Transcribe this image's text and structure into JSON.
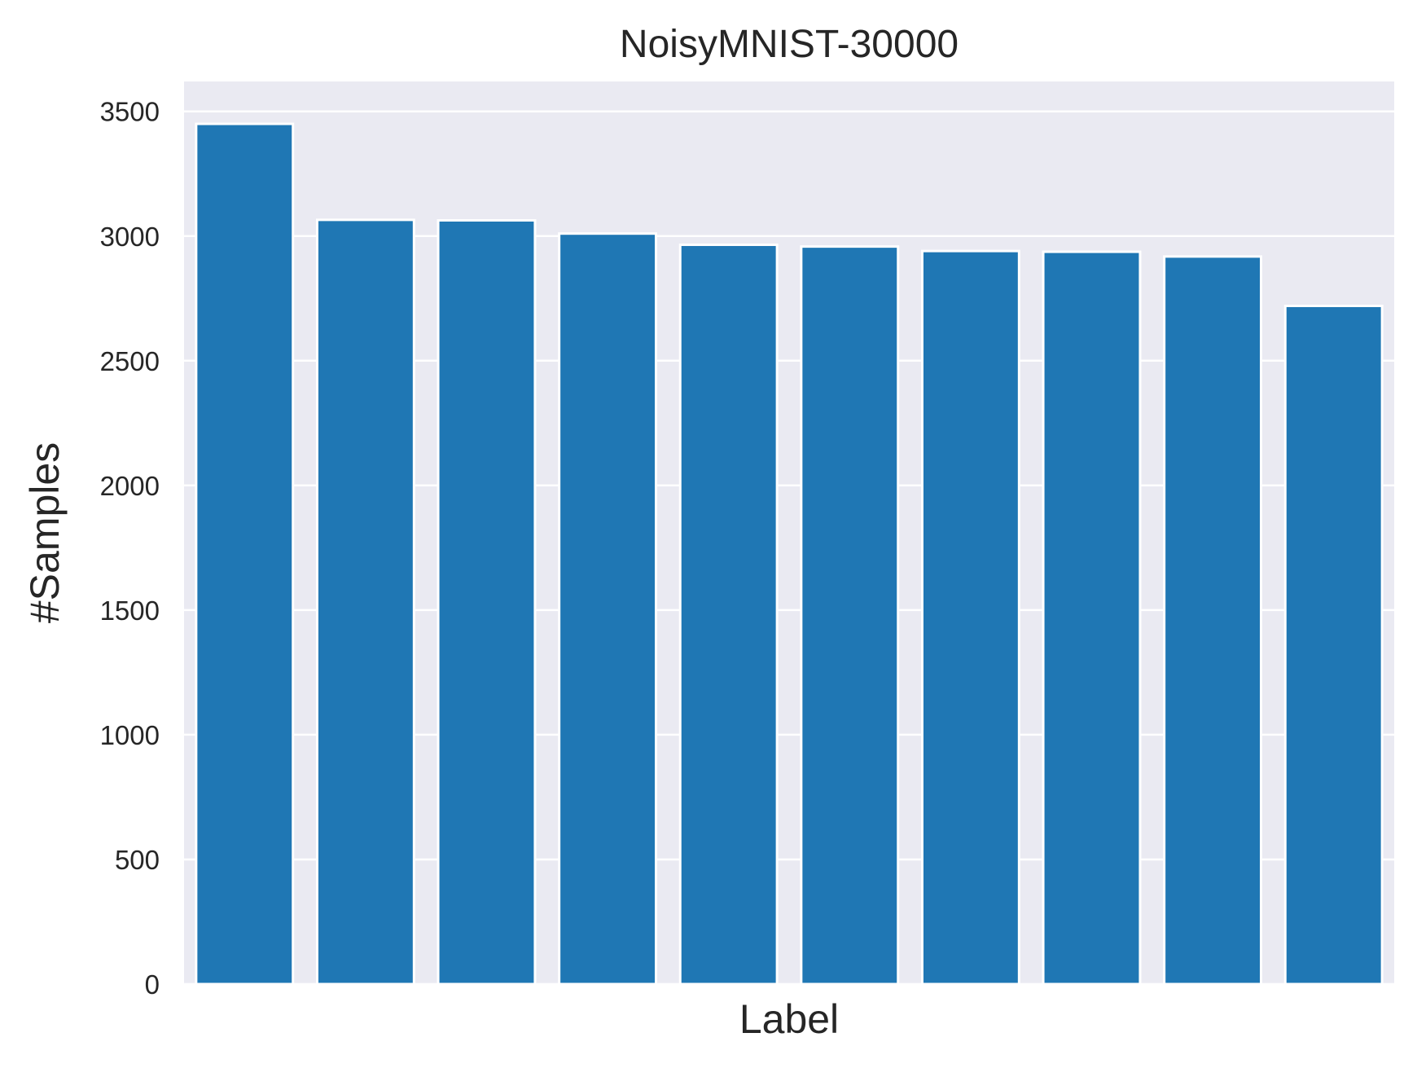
{
  "chart_data": {
    "type": "bar",
    "title": "NoisyMNIST-30000",
    "xlabel": "Label",
    "ylabel": "#Samples",
    "categories": [
      "",
      "",
      "",
      "",
      "",
      "",
      "",
      "",
      "",
      ""
    ],
    "values": [
      3450,
      3065,
      3063,
      3010,
      2965,
      2958,
      2940,
      2937,
      2918,
      2720
    ],
    "ylim": [
      0,
      3620
    ],
    "yticks": [
      0,
      500,
      1000,
      1500,
      2000,
      2500,
      3000,
      3500
    ],
    "grid": true,
    "show_x_ticks": false,
    "colors": {
      "bar": "#1f77b4",
      "bar_edge": "#ffffff",
      "plot_background": "#eaeaf2",
      "grid": "#ffffff"
    }
  }
}
